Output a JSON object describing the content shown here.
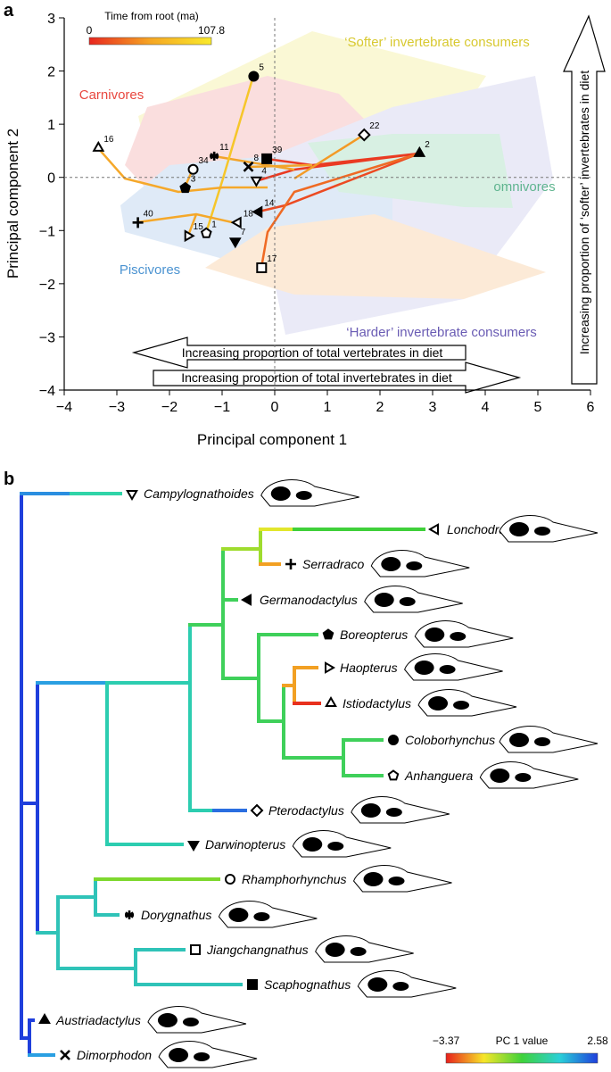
{
  "panel_labels": [
    "a",
    "b"
  ],
  "chart_data": {
    "type": "scatter",
    "xlabel": "Principal component 1",
    "ylabel": "Principal component 2",
    "xlim": [
      -4,
      6
    ],
    "ylim": [
      -4,
      3
    ],
    "xticks": [
      {
        "value": -4,
        "label": "−4"
      },
      {
        "value": -3,
        "label": "−3"
      },
      {
        "value": -2,
        "label": "−2"
      },
      {
        "value": -1,
        "label": "−1"
      },
      0,
      1,
      2,
      3,
      4,
      5,
      6
    ],
    "yticks": [
      {
        "value": -4,
        "label": "−4"
      },
      {
        "value": -3,
        "label": "−3"
      },
      {
        "value": -2,
        "label": "−2"
      },
      {
        "value": -1,
        "label": "−1"
      },
      0,
      1,
      2,
      3
    ],
    "point_labels": [
      "5",
      "22",
      "2",
      "39",
      "8",
      "11",
      "34",
      "3",
      "4",
      "16",
      "40",
      "18",
      "14",
      "1",
      "15",
      "7",
      "17"
    ],
    "x": [
      -0.4,
      1.7,
      2.75,
      -0.15,
      -0.5,
      -1.15,
      -1.55,
      -1.7,
      -0.35,
      -3.35,
      -2.6,
      -0.7,
      -0.3,
      -1.3,
      -1.65,
      -0.75,
      -0.25
    ],
    "y": [
      1.9,
      0.8,
      0.45,
      0.35,
      0.2,
      0.4,
      0.15,
      -0.2,
      -0.05,
      0.55,
      -0.85,
      -0.85,
      -0.65,
      -1.05,
      -1.1,
      -1.2,
      -1.7
    ],
    "markers": [
      "filled-circle",
      "diamond",
      "filled-tri-up",
      "filled-square",
      "x",
      "asterisk",
      "circle",
      "filled-pentagon",
      "tri-down",
      "tri-up",
      "plus",
      "tri-left",
      "filled-tri-left",
      "pentagon",
      "tri-right",
      "filled-tri-down",
      "square"
    ],
    "colorbar": {
      "title": "Time from root (ma)",
      "ticks": [
        0,
        107.8
      ],
      "colors": [
        "#e8261f",
        "#f6a623",
        "#f9ea2c"
      ]
    },
    "regions": [
      {
        "name": "‘Softer’ invertebrate consumers",
        "color": "#d8c930"
      },
      {
        "name": "Carnivores",
        "color": "#e8473f"
      },
      {
        "name": "omnivores",
        "color": "#5fb48f"
      },
      {
        "name": "Piscivores",
        "color": "#4b93d1"
      },
      {
        "name": "‘Harder’ invertebrate consumers",
        "color": "#6a5cb4"
      }
    ],
    "annotations": [
      "Increasing proportion of total vertebrates in diet",
      "Increasing proportion of total invertebrates in diet",
      "Increasing proportion of ‘softer’ invertebrates in diet"
    ]
  },
  "tree": {
    "taxa": [
      {
        "name": "Campylognathoides",
        "marker": "tri-down"
      },
      {
        "name": "Lonchodraco",
        "marker": "tri-left"
      },
      {
        "name": "Serradraco",
        "marker": "plus"
      },
      {
        "name": "Germanodactylus",
        "marker": "filled-tri-left"
      },
      {
        "name": "Boreopterus",
        "marker": "filled-pentagon"
      },
      {
        "name": "Haopterus",
        "marker": "tri-right"
      },
      {
        "name": "Istiodactylus",
        "marker": "tri-up"
      },
      {
        "name": "Coloborhynchus",
        "marker": "filled-circle"
      },
      {
        "name": "Anhanguera",
        "marker": "pentagon"
      },
      {
        "name": "Pterodactylus",
        "marker": "diamond"
      },
      {
        "name": "Darwinopterus",
        "marker": "filled-tri-down"
      },
      {
        "name": "Rhamphorhynchus",
        "marker": "circle"
      },
      {
        "name": "Dorygnathus",
        "marker": "asterisk"
      },
      {
        "name": "Jiangchangnathus",
        "marker": "square"
      },
      {
        "name": "Scaphognathus",
        "marker": "filled-square"
      },
      {
        "name": "Austriadactylus",
        "marker": "filled-tri-up"
      },
      {
        "name": "Dimorphodon",
        "marker": "x"
      }
    ],
    "colorbar": {
      "title": "PC 1 value",
      "ticks": [
        {
          "value": -3.37,
          "label": "−3.37"
        },
        2.58
      ],
      "colors": [
        "#e8201c",
        "#f7e629",
        "#3fd23a",
        "#2ad0d8",
        "#1f3fdc"
      ]
    }
  }
}
